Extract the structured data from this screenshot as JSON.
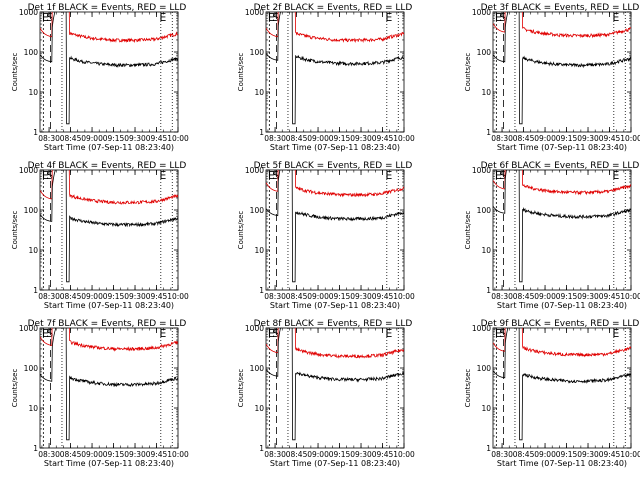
{
  "figure": {
    "xlabel": "Start Time (07-Sep-11 08:23:40)",
    "ylabel": "Counts/sec",
    "xticks": [
      "08:30",
      "08:45",
      "09:00",
      "09:15",
      "09:30",
      "09:45",
      "10:00"
    ],
    "yticks": [
      "1",
      "10",
      "100",
      "1000"
    ],
    "marker_labels": [
      "E",
      "S",
      "E"
    ],
    "colors": {
      "events": "#000000",
      "lld": "#e00000"
    }
  },
  "chart_data": [
    {
      "type": "line",
      "title": "Det 1f BLACK = Events, RED = LLD",
      "events_level": 55,
      "lld_level": 230,
      "ylim": [
        1,
        1000
      ],
      "log_y": true,
      "x_range": [
        "08:23:40",
        "10:00:00"
      ]
    },
    {
      "type": "line",
      "title": "Det 2f BLACK = Events, RED = LLD",
      "events_level": 60,
      "lld_level": 230,
      "ylim": [
        1,
        1000
      ],
      "log_y": true,
      "x_range": [
        "08:23:40",
        "10:00:00"
      ]
    },
    {
      "type": "line",
      "title": "Det 3f BLACK = Events, RED = LLD",
      "events_level": 55,
      "lld_level": 300,
      "ylim": [
        1,
        1000
      ],
      "log_y": true,
      "x_range": [
        "08:23:40",
        "10:00:00"
      ]
    },
    {
      "type": "line",
      "title": "Det 4f BLACK = Events, RED = LLD",
      "events_level": 50,
      "lld_level": 180,
      "ylim": [
        1,
        1000
      ],
      "log_y": true,
      "x_range": [
        "08:23:40",
        "10:00:00"
      ]
    },
    {
      "type": "line",
      "title": "Det 5f BLACK = Events, RED = LLD",
      "events_level": 70,
      "lld_level": 280,
      "ylim": [
        1,
        1000
      ],
      "log_y": true,
      "x_range": [
        "08:23:40",
        "10:00:00"
      ]
    },
    {
      "type": "line",
      "title": "Det 6f BLACK = Events, RED = LLD",
      "events_level": 80,
      "lld_level": 320,
      "ylim": [
        1,
        1000
      ],
      "log_y": true,
      "x_range": [
        "08:23:40",
        "10:00:00"
      ]
    },
    {
      "type": "line",
      "title": "Det 7f BLACK = Events, RED = LLD",
      "events_level": 45,
      "lld_level": 350,
      "ylim": [
        1,
        1000
      ],
      "log_y": true,
      "x_range": [
        "08:23:40",
        "10:00:00"
      ]
    },
    {
      "type": "line",
      "title": "Det 8f BLACK = Events, RED = LLD",
      "events_level": 60,
      "lld_level": 230,
      "ylim": [
        1,
        1000
      ],
      "log_y": true,
      "x_range": [
        "08:23:40",
        "10:00:00"
      ]
    },
    {
      "type": "line",
      "title": "Det 9f BLACK = Events, RED = LLD",
      "events_level": 55,
      "lld_level": 250,
      "ylim": [
        1,
        1000
      ],
      "log_y": true,
      "x_range": [
        "08:23:40",
        "10:00:00"
      ]
    }
  ]
}
